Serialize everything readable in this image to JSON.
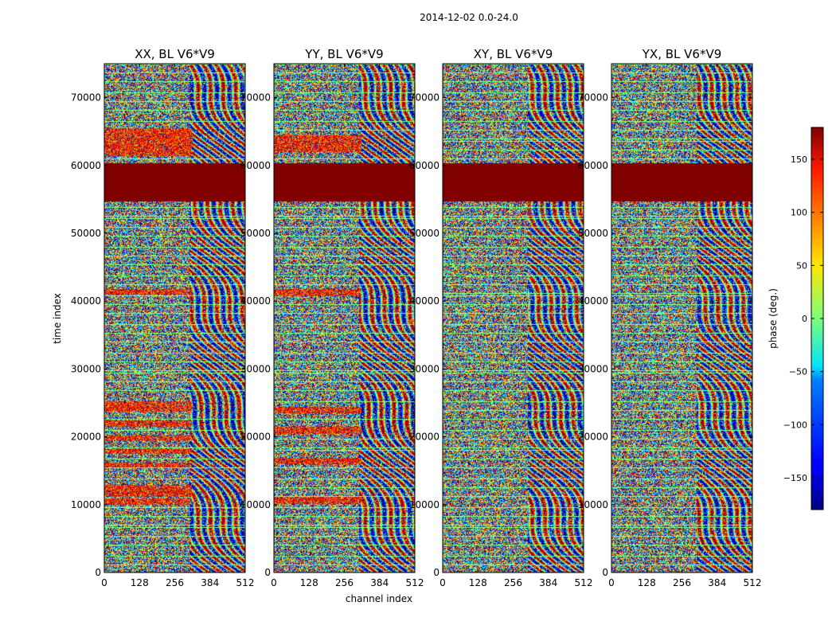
{
  "figure": {
    "suptitle": "2014-12-02 0.0-24.0"
  },
  "chart_data": [
    {
      "type": "heatmap",
      "title": "XX, BL V6*V9",
      "xlabel": "channel index",
      "ylabel": "time index",
      "xlim": [
        0,
        512
      ],
      "ylim": [
        0,
        75000
      ],
      "xticks": [
        0,
        128,
        256,
        384,
        512
      ],
      "yticks": [
        0,
        10000,
        20000,
        30000,
        40000,
        50000,
        60000,
        70000
      ],
      "ytick_labels": [
        "0",
        "10000",
        "20000",
        "30000",
        "40000",
        "50000",
        "60000",
        "70000"
      ],
      "colormap": "jet",
      "saturated_band": {
        "y": [
          54800,
          60400
        ],
        "value": 180
      },
      "high_phase_bands": [
        [
          10000,
          11000
        ],
        [
          11200,
          13000
        ],
        [
          15500,
          16200
        ],
        [
          17500,
          18200
        ],
        [
          19500,
          20200
        ],
        [
          21500,
          22500
        ],
        [
          23800,
          25300
        ],
        [
          41000,
          41800
        ],
        [
          61500,
          65500
        ]
      ]
    },
    {
      "type": "heatmap",
      "title": "YY, BL V6*V9",
      "xlabel": "channel index",
      "ylabel": "",
      "xlim": [
        0,
        512
      ],
      "ylim": [
        0,
        75000
      ],
      "xticks": [
        0,
        128,
        256,
        384,
        512
      ],
      "yticks": [
        0,
        10000,
        20000,
        30000,
        40000,
        50000,
        60000,
        70000
      ],
      "ytick_labels": [
        "0",
        "10000",
        "20000",
        "30000",
        "40000",
        "50000",
        "60000",
        "70000"
      ],
      "colormap": "jet",
      "saturated_band": {
        "y": [
          54800,
          60400
        ],
        "value": 180
      },
      "high_phase_bands": [
        [
          10200,
          11200
        ],
        [
          16000,
          17000
        ],
        [
          20500,
          21500
        ],
        [
          23500,
          24500
        ],
        [
          40800,
          41800
        ],
        [
          62000,
          64500
        ]
      ]
    },
    {
      "type": "heatmap",
      "title": "XY, BL V6*V9",
      "xlabel": "channel index",
      "ylabel": "",
      "xlim": [
        0,
        512
      ],
      "ylim": [
        0,
        75000
      ],
      "xticks": [
        0,
        128,
        256,
        384,
        512
      ],
      "yticks": [
        0,
        10000,
        20000,
        30000,
        40000,
        50000,
        60000,
        70000
      ],
      "ytick_labels": [
        "0",
        "10000",
        "20000",
        "30000",
        "40000",
        "50000",
        "60000",
        "70000"
      ],
      "colormap": "jet",
      "saturated_band": {
        "y": [
          54800,
          60400
        ],
        "value": 180
      },
      "high_phase_bands": []
    },
    {
      "type": "heatmap",
      "title": "YX, BL V6*V9",
      "xlabel": "channel index",
      "ylabel": "",
      "xlim": [
        0,
        512
      ],
      "ylim": [
        0,
        75000
      ],
      "xticks": [
        0,
        128,
        256,
        384,
        512
      ],
      "yticks": [
        0,
        10000,
        20000,
        30000,
        40000,
        50000,
        60000,
        70000
      ],
      "ytick_labels": [
        "0",
        "10000",
        "20000",
        "30000",
        "40000",
        "50000",
        "60000",
        "70000"
      ],
      "colormap": "jet",
      "saturated_band": {
        "y": [
          54800,
          60400
        ],
        "value": 180
      },
      "high_phase_bands": []
    }
  ],
  "colorbar": {
    "label": "phase (deg.)",
    "range": [
      -180,
      180
    ],
    "ticks": [
      -150,
      -100,
      -50,
      0,
      50,
      100,
      150
    ],
    "tick_labels": [
      "−150",
      "−100",
      "−50",
      "0",
      "50",
      "100",
      "150"
    ]
  },
  "colors": {
    "saturated": "#7f0000",
    "background": "#ffffff",
    "axes": "#000000"
  }
}
